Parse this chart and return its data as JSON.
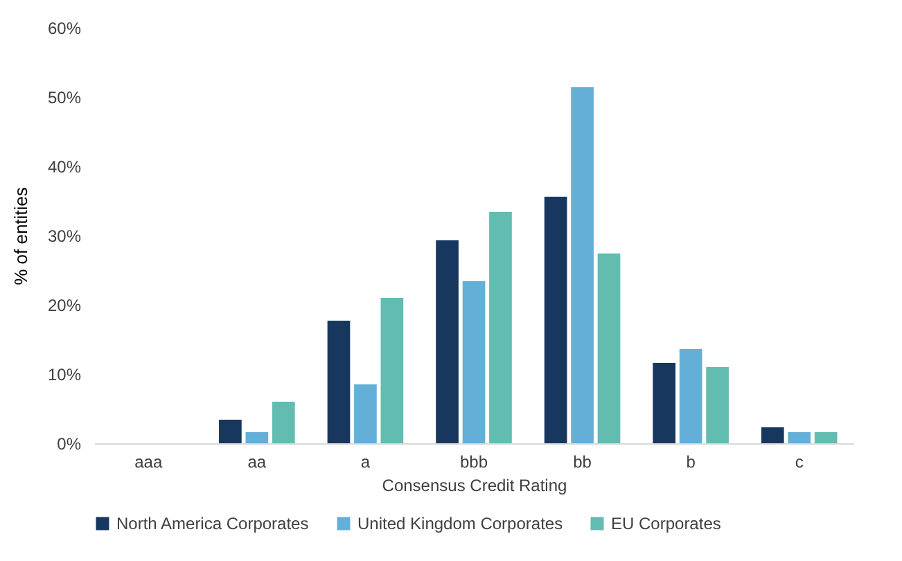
{
  "chart_data": {
    "type": "bar",
    "xlabel": "Consensus Credit Rating",
    "ylabel": "% of entities",
    "categories": [
      "aaa",
      "aa",
      "a",
      "bbb",
      "bb",
      "b",
      "c"
    ],
    "series": [
      {
        "name": "North America Corporates",
        "color": "#17375e",
        "values": [
          0,
          3.4,
          17.7,
          29.3,
          35.6,
          11.6,
          2.3
        ]
      },
      {
        "name": "United Kingdom Corporates",
        "color": "#64afd8",
        "values": [
          0,
          1.6,
          8.5,
          23.4,
          51.4,
          13.6,
          1.6
        ]
      },
      {
        "name": "EU Corporates",
        "color": "#63bcb0",
        "values": [
          0,
          6.0,
          21.0,
          33.4,
          27.4,
          11.0,
          1.6
        ]
      }
    ],
    "ylim": [
      0,
      60
    ],
    "yticks": [
      {
        "value": 0,
        "label": "0%"
      },
      {
        "value": 10,
        "label": "10%"
      },
      {
        "value": 20,
        "label": "20%"
      },
      {
        "value": 30,
        "label": "30%"
      },
      {
        "value": 40,
        "label": "40%"
      },
      {
        "value": 50,
        "label": "50%"
      },
      {
        "value": 60,
        "label": "60%"
      }
    ],
    "grid": false,
    "legend": "bottom"
  }
}
